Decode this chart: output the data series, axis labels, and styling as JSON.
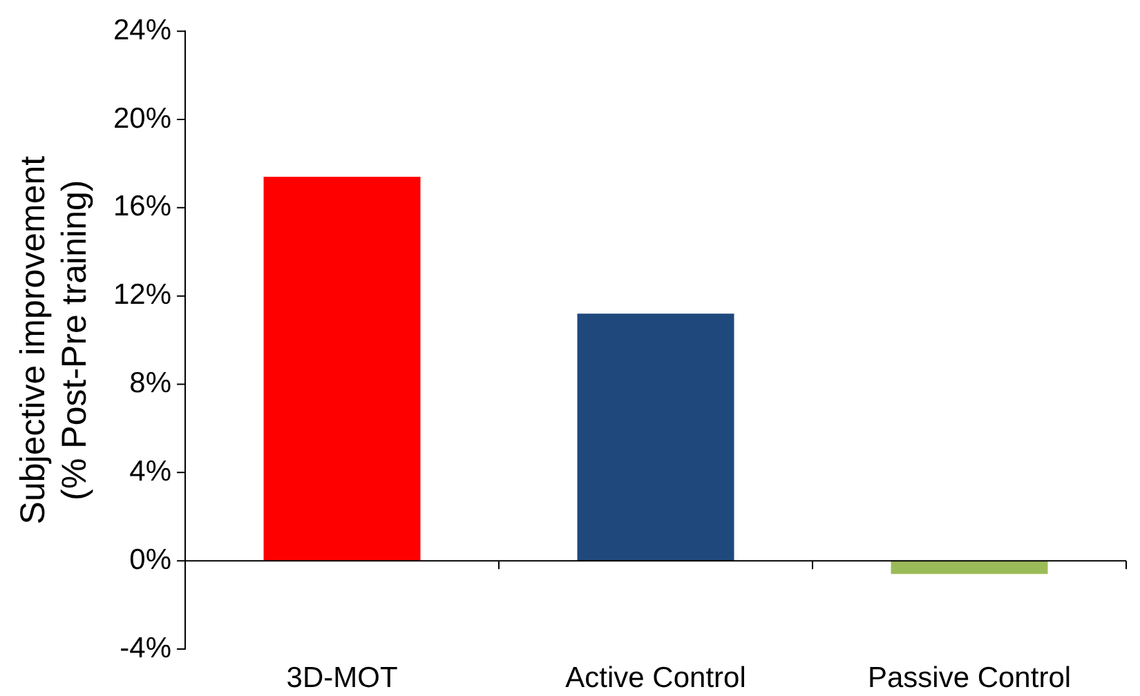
{
  "chart_data": {
    "type": "bar",
    "ylabel": "Subjective improvement\n(% Post-Pre training)",
    "categories": [
      "3D-MOT",
      "Active Control",
      "Passive Control"
    ],
    "values": [
      17.4,
      11.2,
      -0.6
    ],
    "colors": [
      "#ff0000",
      "#1f497d",
      "#9bbb59"
    ],
    "ylim": [
      -4,
      24
    ],
    "yticks": [
      {
        "value": -4,
        "label": "-4%"
      },
      {
        "value": 0,
        "label": "0%"
      },
      {
        "value": 4,
        "label": "4%"
      },
      {
        "value": 8,
        "label": "8%"
      },
      {
        "value": 12,
        "label": "12%"
      },
      {
        "value": 16,
        "label": "16%"
      },
      {
        "value": 20,
        "label": "20%"
      },
      {
        "value": 24,
        "label": "24%"
      }
    ],
    "ref_lines": [
      {
        "axis": "y",
        "value": 0,
        "color": "#000000"
      }
    ],
    "grid": false
  }
}
